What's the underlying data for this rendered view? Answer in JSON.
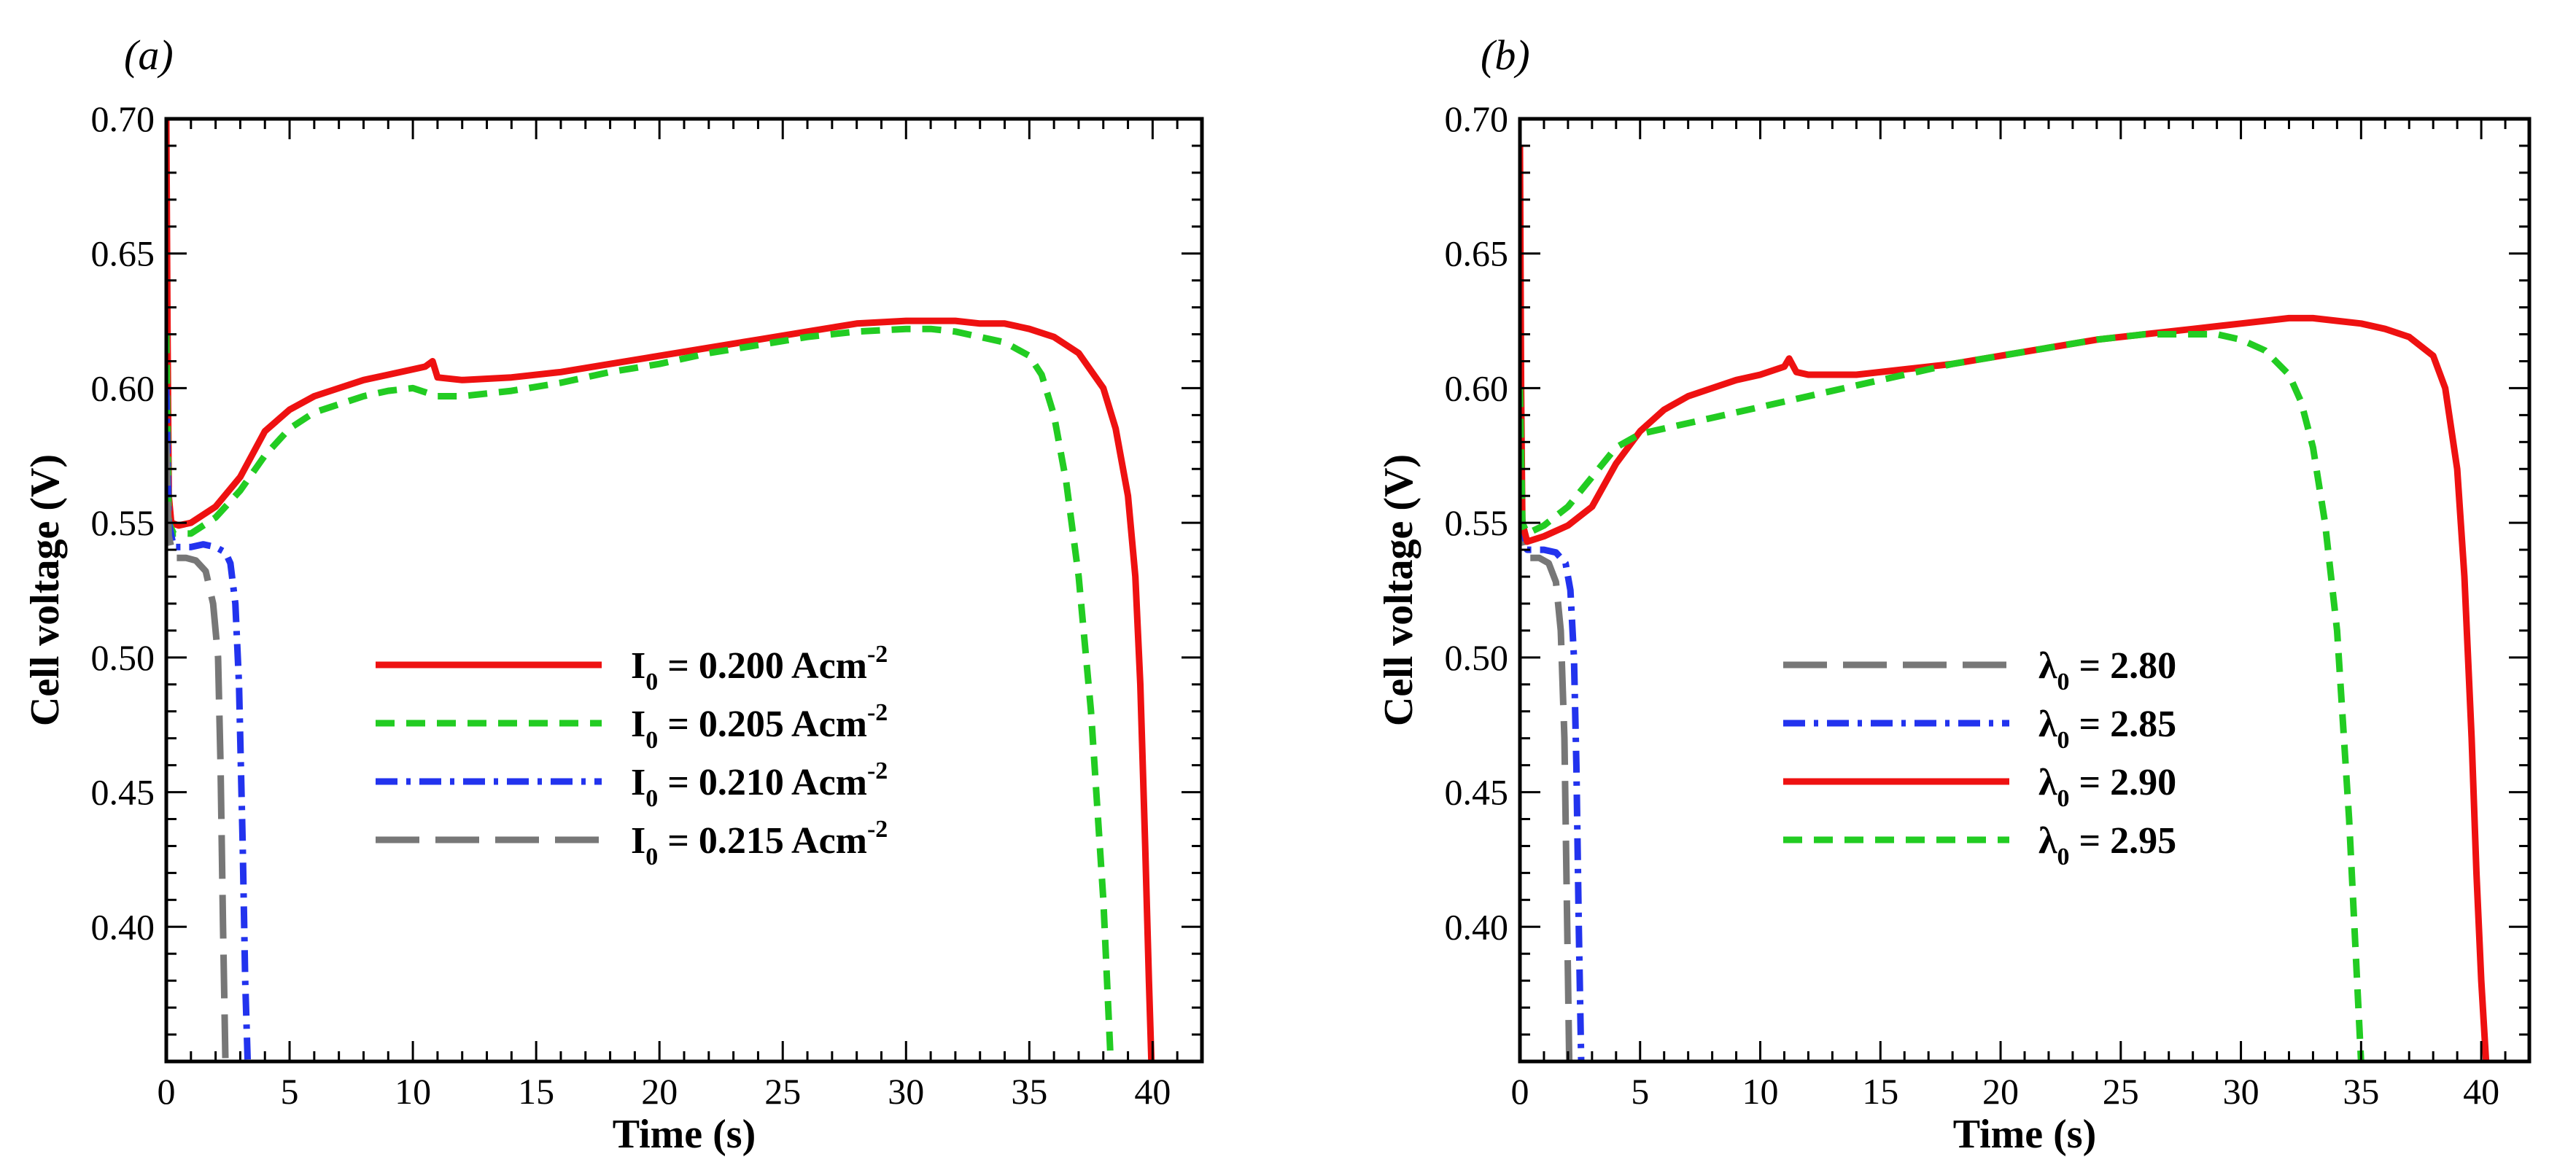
{
  "chart_data": [
    {
      "type": "line",
      "panel_label": "(a)",
      "xlabel": "Time (s)",
      "ylabel": "Cell voltage (V)",
      "xlim": [
        0,
        42
      ],
      "ylim": [
        0.35,
        0.7
      ],
      "xticks": [
        0,
        5,
        10,
        15,
        20,
        25,
        30,
        35,
        40
      ],
      "yticks": [
        0.4,
        0.45,
        0.5,
        0.55,
        0.6,
        0.65,
        0.7
      ],
      "grid": false,
      "legend_position": "center-right",
      "series": [
        {
          "name": "I0 = 0.200 Acm-2",
          "legend": {
            "main": "I",
            "sub": "0",
            "rest": " = 0.200 Acm",
            "sup": "-2"
          },
          "color": "#ee1111",
          "style": "solid",
          "x": [
            0,
            0.05,
            0.1,
            0.2,
            0.5,
            1,
            2,
            3,
            4,
            5,
            6,
            7,
            8,
            9,
            10,
            10.5,
            10.8,
            11,
            12,
            14,
            16,
            18,
            20,
            22,
            24,
            26,
            28,
            30,
            32,
            33,
            34,
            35,
            36,
            37,
            38,
            38.5,
            39,
            39.3,
            39.5,
            39.7,
            39.85,
            39.95
          ],
          "y": [
            0.7,
            0.62,
            0.56,
            0.55,
            0.549,
            0.55,
            0.556,
            0.567,
            0.584,
            0.592,
            0.597,
            0.6,
            0.603,
            0.605,
            0.607,
            0.608,
            0.61,
            0.604,
            0.603,
            0.604,
            0.606,
            0.609,
            0.612,
            0.615,
            0.618,
            0.621,
            0.624,
            0.625,
            0.625,
            0.624,
            0.624,
            0.622,
            0.619,
            0.613,
            0.6,
            0.585,
            0.56,
            0.53,
            0.49,
            0.43,
            0.38,
            0.35
          ]
        },
        {
          "name": "I0 = 0.205 Acm-2",
          "legend": {
            "main": "I",
            "sub": "0",
            "rest": " = 0.205 Acm",
            "sup": "-2"
          },
          "color": "#22cc22",
          "style": "dashed",
          "x": [
            0,
            0.1,
            0.3,
            1,
            2,
            3,
            4,
            5,
            6,
            7,
            8,
            9,
            10,
            11,
            12,
            14,
            16,
            18,
            20,
            22,
            24,
            26,
            28,
            30,
            31,
            32,
            33,
            34,
            35,
            35.5,
            36,
            36.5,
            37,
            37.5,
            38,
            38.3
          ],
          "y": [
            0.62,
            0.55,
            0.546,
            0.546,
            0.552,
            0.562,
            0.575,
            0.585,
            0.591,
            0.594,
            0.597,
            0.599,
            0.6,
            0.597,
            0.597,
            0.599,
            0.602,
            0.606,
            0.609,
            0.613,
            0.616,
            0.619,
            0.621,
            0.622,
            0.622,
            0.621,
            0.619,
            0.617,
            0.612,
            0.605,
            0.59,
            0.565,
            0.53,
            0.48,
            0.41,
            0.35
          ]
        },
        {
          "name": "I0 = 0.210 Acm-2",
          "legend": {
            "main": "I",
            "sub": "0",
            "rest": " = 0.210 Acm",
            "sup": "-2"
          },
          "color": "#2233ee",
          "style": "dashdot",
          "x": [
            0,
            0.1,
            0.3,
            1,
            1.5,
            2,
            2.4,
            2.6,
            2.8,
            2.95,
            3.1,
            3.2,
            3.3
          ],
          "y": [
            0.6,
            0.55,
            0.541,
            0.541,
            0.542,
            0.541,
            0.539,
            0.535,
            0.52,
            0.49,
            0.43,
            0.38,
            0.35
          ]
        },
        {
          "name": "I0 = 0.215 Acm-2",
          "legend": {
            "main": "I",
            "sub": "0",
            "rest": " = 0.215 Acm",
            "sup": "-2"
          },
          "color": "#777777",
          "style": "longdash",
          "x": [
            0,
            0.1,
            0.3,
            0.8,
            1.2,
            1.6,
            1.9,
            2.1,
            2.2,
            2.3,
            2.4
          ],
          "y": [
            0.58,
            0.545,
            0.537,
            0.537,
            0.536,
            0.532,
            0.52,
            0.5,
            0.46,
            0.4,
            0.35
          ]
        }
      ]
    },
    {
      "type": "line",
      "panel_label": "(b)",
      "xlabel": "Time (s)",
      "ylabel": "Cell voltage (V)",
      "xlim": [
        0,
        42
      ],
      "ylim": [
        0.35,
        0.7
      ],
      "xticks": [
        0,
        5,
        10,
        15,
        20,
        25,
        30,
        35,
        40
      ],
      "yticks": [
        0.4,
        0.45,
        0.5,
        0.55,
        0.6,
        0.65,
        0.7
      ],
      "grid": false,
      "legend_position": "center-right",
      "series": [
        {
          "name": "λ0 = 2.80",
          "legend": {
            "main": "λ",
            "sub": "0",
            "rest": " = 2.80",
            "sup": ""
          },
          "color": "#777777",
          "style": "longdash",
          "x": [
            0,
            0.1,
            0.3,
            0.8,
            1.2,
            1.5,
            1.7,
            1.85,
            1.95,
            2.05
          ],
          "y": [
            0.58,
            0.545,
            0.537,
            0.537,
            0.535,
            0.528,
            0.51,
            0.47,
            0.41,
            0.35
          ]
        },
        {
          "name": "λ0 = 2.85",
          "legend": {
            "main": "λ",
            "sub": "0",
            "rest": " = 2.85",
            "sup": ""
          },
          "color": "#2233ee",
          "style": "dashdot",
          "x": [
            0,
            0.1,
            0.3,
            1,
            1.5,
            1.9,
            2.1,
            2.25,
            2.35,
            2.45,
            2.55
          ],
          "y": [
            0.6,
            0.55,
            0.54,
            0.54,
            0.539,
            0.535,
            0.525,
            0.5,
            0.46,
            0.4,
            0.35
          ]
        },
        {
          "name": "λ0 = 2.90",
          "legend": {
            "main": "λ",
            "sub": "0",
            "rest": " = 2.90",
            "sup": ""
          },
          "color": "#ee1111",
          "style": "solid",
          "x": [
            0,
            0.05,
            0.1,
            0.3,
            1,
            2,
            3,
            4,
            5,
            6,
            7,
            8,
            9,
            10,
            11,
            11.2,
            11.5,
            12,
            14,
            16,
            18,
            20,
            22,
            24,
            26,
            28,
            30,
            32,
            33,
            34,
            35,
            36,
            37,
            38,
            38.5,
            39,
            39.3,
            39.6,
            39.8,
            40,
            40.2
          ],
          "y": [
            0.69,
            0.6,
            0.55,
            0.543,
            0.545,
            0.549,
            0.556,
            0.572,
            0.584,
            0.592,
            0.597,
            0.6,
            0.603,
            0.605,
            0.608,
            0.611,
            0.606,
            0.605,
            0.605,
            0.607,
            0.609,
            0.612,
            0.615,
            0.618,
            0.62,
            0.622,
            0.624,
            0.626,
            0.626,
            0.625,
            0.624,
            0.622,
            0.619,
            0.612,
            0.6,
            0.57,
            0.53,
            0.47,
            0.42,
            0.38,
            0.35
          ]
        },
        {
          "name": "λ0 = 2.95",
          "legend": {
            "main": "λ",
            "sub": "0",
            "rest": " = 2.95",
            "sup": ""
          },
          "color": "#22cc22",
          "style": "dashed",
          "x": [
            0,
            0.1,
            0.3,
            1,
            2,
            3,
            4,
            5,
            6,
            8,
            10,
            12,
            14,
            16,
            18,
            20,
            22,
            24,
            26,
            28,
            29,
            30,
            31,
            32,
            32.5,
            33,
            33.5,
            34,
            34.5,
            35
          ],
          "y": [
            0.6,
            0.55,
            0.546,
            0.549,
            0.556,
            0.567,
            0.578,
            0.583,
            0.585,
            0.589,
            0.593,
            0.597,
            0.601,
            0.605,
            0.609,
            0.612,
            0.615,
            0.618,
            0.62,
            0.62,
            0.62,
            0.618,
            0.614,
            0.605,
            0.595,
            0.578,
            0.55,
            0.51,
            0.44,
            0.35
          ]
        }
      ]
    }
  ]
}
